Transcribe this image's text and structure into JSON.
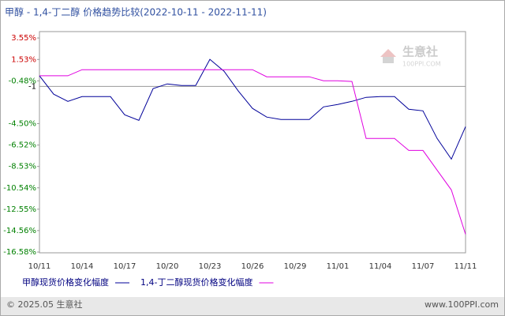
{
  "chart_data": {
    "type": "line",
    "title": "甲醇 - 1,4-丁二醇 价格趋势比较(2022-10-11 - 2022-11-11)",
    "categories": [
      "10/11",
      null,
      null,
      "10/14",
      null,
      null,
      "10/17",
      null,
      null,
      "10/20",
      null,
      null,
      "10/23",
      null,
      null,
      "10/26",
      null,
      null,
      "10/29",
      null,
      null,
      "11/01",
      null,
      null,
      "11/04",
      null,
      null,
      "11/07",
      null,
      null,
      "11/11"
    ],
    "series": [
      {
        "name": "甲醇现货价格变化幅度",
        "color": "#000099",
        "values": [
          0,
          -1.73,
          -2.41,
          -1.96,
          -1.96,
          -1.96,
          -3.67,
          -4.19,
          -1.21,
          -0.77,
          -0.92,
          -0.92,
          1.54,
          0.42,
          -1.44,
          -3.07,
          -3.89,
          -4.12,
          -4.12,
          -4.12,
          -2.93,
          -2.7,
          -2.41,
          -2.03,
          -1.96,
          -1.96,
          -3.15,
          -3.3,
          -5.9,
          -7.84,
          -4.79
        ]
      },
      {
        "name": "1,4-丁二醇现货价格变化幅度",
        "color": "#e000e0",
        "values": [
          0,
          0,
          0,
          0.57,
          0.57,
          0.57,
          0.57,
          0.57,
          0.57,
          0.57,
          0.57,
          0.57,
          0.57,
          0.57,
          0.57,
          0.57,
          -0.1,
          -0.1,
          -0.1,
          -0.1,
          -0.47,
          -0.47,
          -0.54,
          -5.9,
          -5.9,
          -5.9,
          -7.02,
          -7.02,
          -8.88,
          -10.74,
          -14.91
        ]
      }
    ],
    "ylim": [
      -16.65,
      4.15
    ],
    "yticks": [
      {
        "value": 3.55,
        "label": "3.55%"
      },
      {
        "value": 1.53,
        "label": "1.53%"
      },
      {
        "value": -0.48,
        "label": "-0.48%"
      },
      {
        "value": -4.5,
        "label": "-4.50%"
      },
      {
        "value": -6.52,
        "label": "-6.52%"
      },
      {
        "value": -8.53,
        "label": "-8.53%"
      },
      {
        "value": -10.54,
        "label": "-10.54%"
      },
      {
        "value": -12.55,
        "label": "-12.55%"
      },
      {
        "value": -14.56,
        "label": "-14.56%"
      },
      {
        "value": -16.58,
        "label": "-16.58%"
      }
    ],
    "reference": -1,
    "watermark": {
      "name": "生意社",
      "site": "100PPI.COM"
    },
    "footer": {
      "left": "© 2025.05 生意社",
      "right": "www.100PPI.com"
    }
  }
}
